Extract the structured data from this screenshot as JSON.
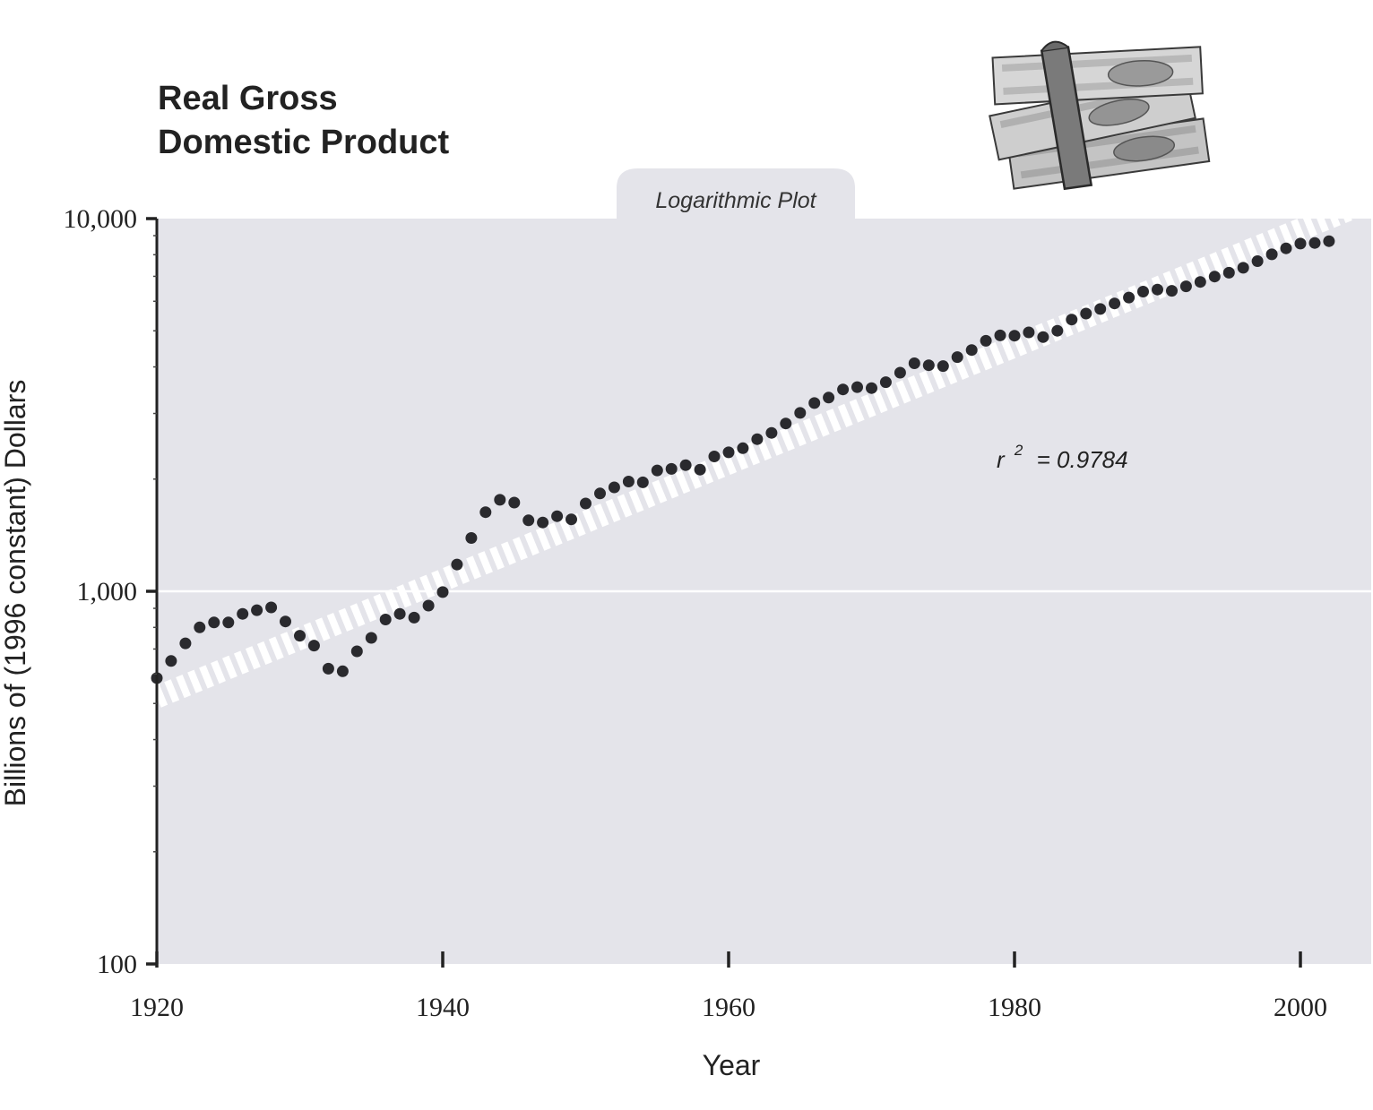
{
  "title": {
    "line1": "Real Gross",
    "line2": "Domestic Product"
  },
  "illustration": {
    "icon": "money-stack-icon"
  },
  "plot_tab_label": "Logarithmic Plot",
  "annotation": {
    "r2_base": "r",
    "r2_exp": "2",
    "r2_value": "= 0.9784"
  },
  "colors": {
    "plot_background": "#e4e4ea",
    "points": "#2a2a2e",
    "trend_stripe": "#ffffff",
    "axis": "#222222"
  },
  "chart_data": {
    "type": "scatter",
    "title": "Real Gross Domestic Product",
    "subtitle": "Logarithmic Plot",
    "xlabel": "Year",
    "ylabel": "Billions of (1996 constant) Dollars",
    "xlim": [
      1920,
      2005
    ],
    "ylim": [
      100,
      10000
    ],
    "y_scale": "log",
    "x_ticks": [
      1920,
      1940,
      1960,
      1980,
      2000
    ],
    "x_tick_labels": [
      "1920",
      "1940",
      "1960",
      "1980",
      "2000"
    ],
    "y_ticks": [
      100,
      1000,
      10000
    ],
    "y_tick_labels": [
      "100",
      "1,000",
      "10,000"
    ],
    "grid": "horizontal line at 1,000",
    "trend": {
      "type": "exponential fit",
      "r2": 0.9784,
      "x": [
        1920,
        2005
      ],
      "y": [
        520,
        11200
      ]
    },
    "x": [
      1920,
      1921,
      1922,
      1923,
      1924,
      1925,
      1926,
      1927,
      1928,
      1929,
      1930,
      1931,
      1932,
      1933,
      1934,
      1935,
      1936,
      1937,
      1938,
      1939,
      1940,
      1941,
      1942,
      1943,
      1944,
      1945,
      1946,
      1947,
      1948,
      1949,
      1950,
      1951,
      1952,
      1953,
      1954,
      1955,
      1956,
      1957,
      1958,
      1959,
      1960,
      1961,
      1962,
      1963,
      1964,
      1965,
      1966,
      1967,
      1968,
      1969,
      1970,
      1971,
      1972,
      1973,
      1974,
      1975,
      1976,
      1977,
      1978,
      1979,
      1980,
      1981,
      1982,
      1983,
      1984,
      1985,
      1986,
      1987,
      1988,
      1989,
      1990,
      1991,
      1992,
      1993,
      1994,
      1995,
      1996,
      1997,
      1998,
      1999,
      2000,
      2001,
      2002
    ],
    "y": [
      585,
      650,
      725,
      800,
      825,
      825,
      870,
      890,
      905,
      830,
      760,
      715,
      620,
      610,
      690,
      750,
      840,
      870,
      850,
      915,
      995,
      1180,
      1390,
      1630,
      1760,
      1730,
      1550,
      1530,
      1590,
      1560,
      1720,
      1830,
      1900,
      1970,
      1960,
      2110,
      2130,
      2180,
      2120,
      2300,
      2360,
      2420,
      2560,
      2660,
      2820,
      3010,
      3200,
      3310,
      3480,
      3530,
      3510,
      3640,
      3860,
      4090,
      4040,
      4020,
      4250,
      4440,
      4700,
      4860,
      4850,
      4950,
      4810,
      5000,
      5360,
      5560,
      5720,
      5920,
      6140,
      6370,
      6450,
      6400,
      6580,
      6760,
      6990,
      7160,
      7380,
      7690,
      8020,
      8320,
      8570,
      8600,
      8700
    ]
  }
}
